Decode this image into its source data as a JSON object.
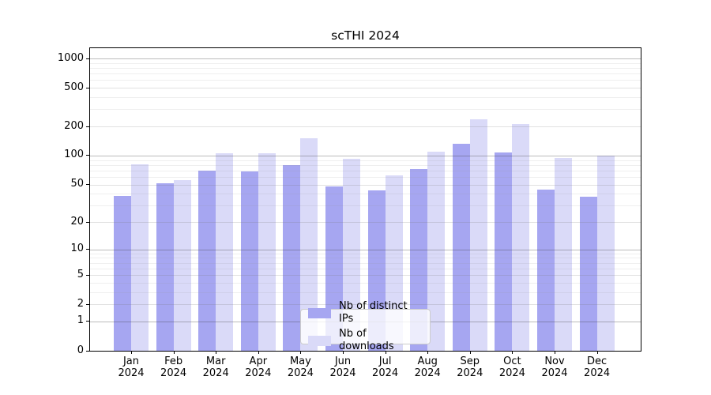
{
  "chart_data": {
    "type": "bar",
    "title": "scTHI 2024",
    "y_scale": "log10(1+x)",
    "categories": [
      "Jan",
      "Feb",
      "Mar",
      "Apr",
      "May",
      "Jun",
      "Jul",
      "Aug",
      "Sep",
      "Oct",
      "Nov",
      "Dec"
    ],
    "x_tick_year": "2024",
    "series": [
      {
        "name": "Nb of distinct IPs",
        "color": "#a6a6f1",
        "values": [
          38,
          51,
          70,
          68,
          80,
          48,
          43,
          73,
          133,
          107,
          44,
          37
        ]
      },
      {
        "name": "Nb of downloads",
        "color": "#dadaf8",
        "values": [
          81,
          55,
          105,
          105,
          150,
          92,
          62,
          109,
          238,
          210,
          95,
          100
        ]
      }
    ],
    "y_ticks": [
      0,
      1,
      2,
      5,
      10,
      20,
      50,
      100,
      200,
      500,
      1000
    ],
    "y_minor_gridlines": [
      3,
      4,
      6,
      7,
      8,
      9,
      30,
      40,
      60,
      70,
      80,
      90,
      300,
      400,
      600,
      700,
      800,
      900
    ],
    "ylim": [
      0,
      1280
    ],
    "grid": "both",
    "gridlines_above_bars": true,
    "legend_position": "lower center",
    "colors": {
      "major_grid": "rgba(60,60,60,0.35)",
      "labeled_minor_grid": "rgba(120,120,120,0.22)",
      "minor_grid": "rgba(150,150,150,0.15)",
      "axis": "#000000",
      "background": "#ffffff"
    }
  }
}
